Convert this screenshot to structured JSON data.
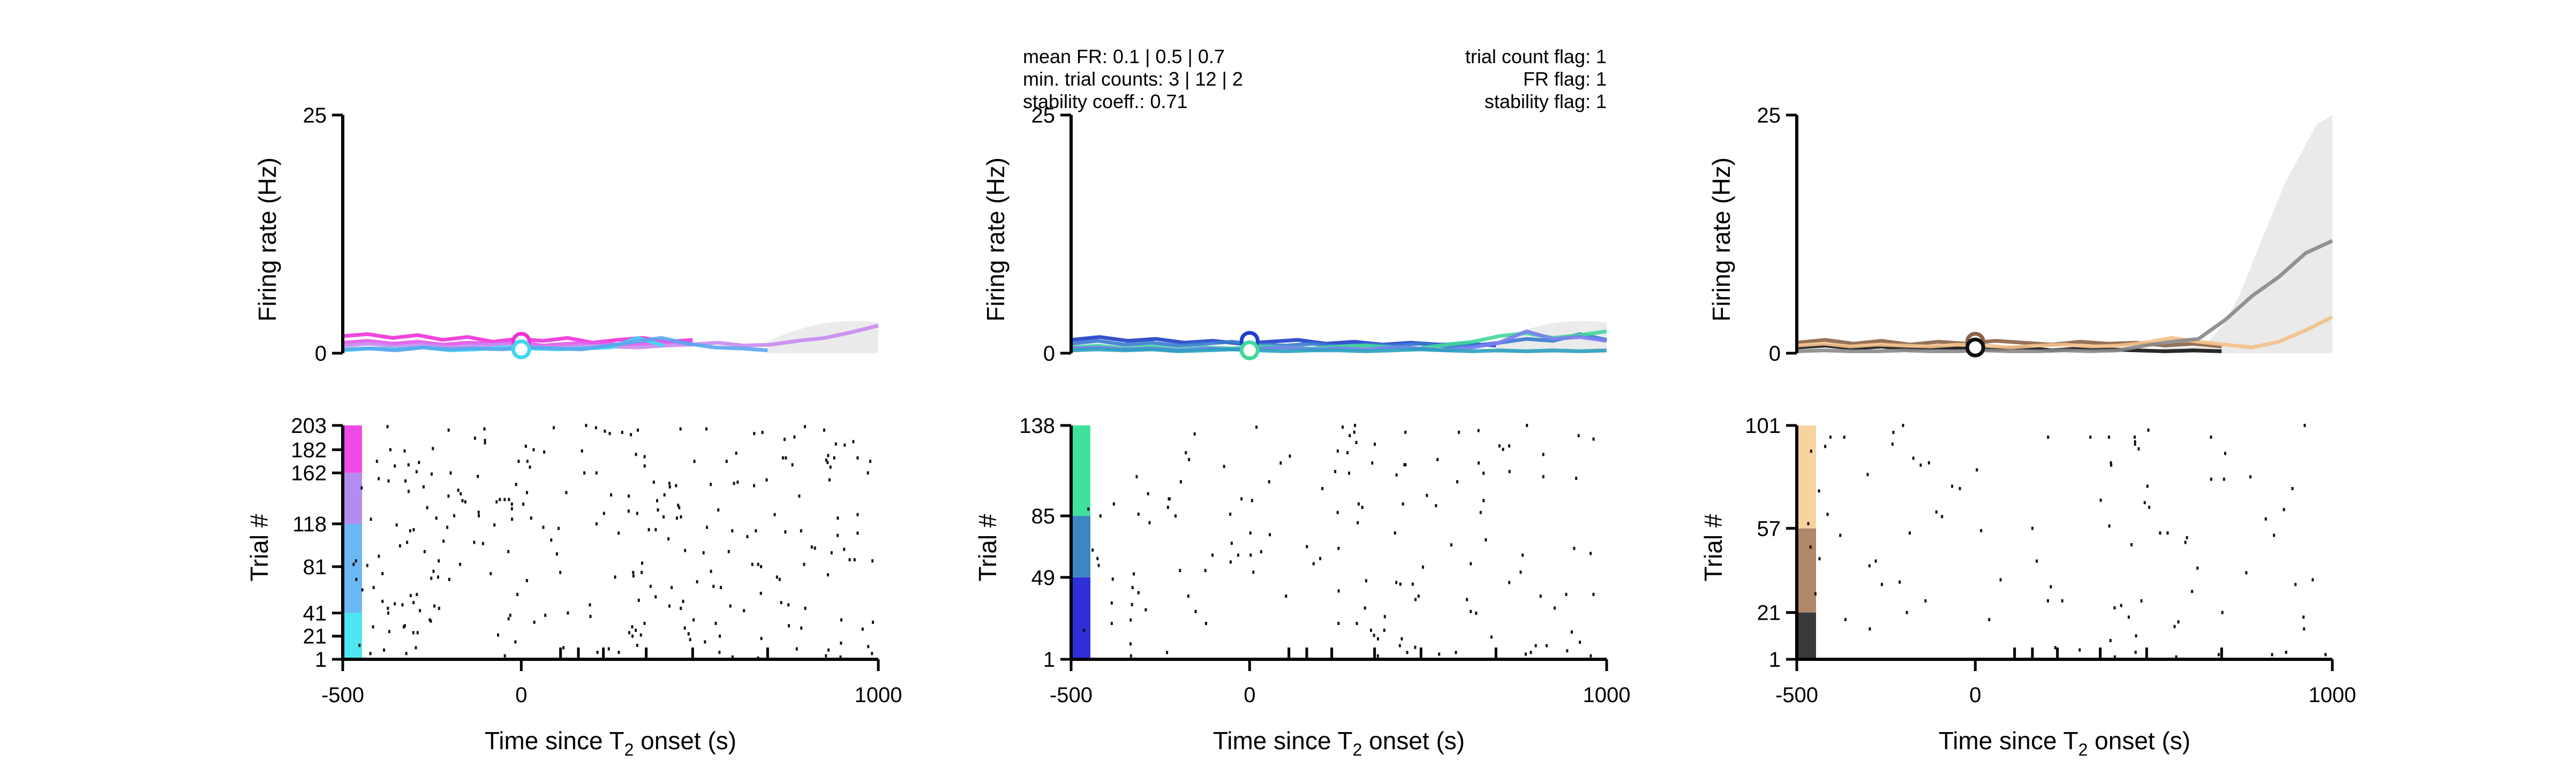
{
  "colors": {
    "axis": "#000000",
    "spike": "#111111",
    "band": "#d8d8d8"
  },
  "chart_data": [
    {
      "type": "line",
      "panel": "left",
      "ylabel_top": "Firing rate (Hz)",
      "ylabel_bottom": "Trial #",
      "xlabel": "Time since T",
      "xlabel_sub": "2",
      "xlabel_tail": " onset (s)",
      "xlim": [
        -500,
        1000
      ],
      "ylim_rate": [
        0,
        25
      ],
      "rate_ticks": [
        "0",
        "25"
      ],
      "x_ticks": [
        "-500",
        "0",
        "1000"
      ],
      "x_tick_values": [
        -500,
        0,
        1000
      ],
      "x_minor_ticks": [
        110,
        160,
        230,
        350,
        480,
        690
      ],
      "trial_ticks": [
        1,
        21,
        41,
        81,
        118,
        162,
        182,
        203
      ],
      "trial_max": 203,
      "trial_groups": [
        {
          "from": 1,
          "to": 41,
          "color": "#4ee6f2"
        },
        {
          "from": 41,
          "to": 118,
          "color": "#6cb8f5"
        },
        {
          "from": 118,
          "to": 162,
          "color": "#b28cf0"
        },
        {
          "from": 162,
          "to": 203,
          "color": "#f04ae6"
        }
      ],
      "series": [
        {
          "color": "#f032d8",
          "end": 480,
          "values": [
            1.8,
            2.0,
            1.6,
            1.9,
            1.4,
            1.7,
            1.2,
            1.5,
            1.3,
            1.6,
            1.1,
            1.4,
            1.6,
            1.2,
            1.4
          ]
        },
        {
          "color": "#e05ae8",
          "end": 480,
          "values": [
            1.1,
            1.3,
            1.0,
            1.2,
            0.9,
            1.1,
            1.0,
            1.2,
            0.8,
            1.0,
            1.1,
            0.9,
            1.0,
            1.2,
            1.0
          ]
        },
        {
          "color": "#c98af0",
          "end": 1000,
          "values": [
            0.8,
            1.0,
            0.7,
            0.9,
            0.6,
            0.8,
            0.9,
            0.7,
            0.6,
            0.8,
            0.7,
            0.6,
            0.8,
            0.9,
            1.1,
            0.8,
            0.9,
            1.3,
            1.6,
            2.2,
            2.9
          ]
        },
        {
          "color": "#3fd8f0",
          "end": 400,
          "values": [
            0.3,
            0.5,
            0.4,
            0.6,
            0.3,
            0.4,
            0.6,
            0.5,
            0.4,
            0.5,
            0.6,
            1.6,
            0.8
          ]
        },
        {
          "color": "#5aa6ee",
          "end": 690,
          "values": [
            0.4,
            0.5,
            0.3,
            0.6,
            0.4,
            0.5,
            0.4,
            0.6,
            0.5,
            0.4,
            0.8,
            1.2,
            1.6,
            1.0,
            0.6,
            0.5,
            0.3
          ]
        }
      ],
      "markers": [
        {
          "x": 0,
          "y": 1.2,
          "color": "#f032d8"
        },
        {
          "x": 0,
          "y": 0.4,
          "color": "#3fd8f0"
        }
      ],
      "band_from": 690,
      "raster_density": 1.0
    },
    {
      "type": "line",
      "panel": "middle",
      "ylabel_top": "Firing rate (Hz)",
      "ylabel_bottom": "Trial #",
      "xlabel": "Time since T",
      "xlabel_sub": "2",
      "xlabel_tail": " onset (s)",
      "xlim": [
        -500,
        1000
      ],
      "ylim_rate": [
        0,
        25
      ],
      "rate_ticks": [
        "0",
        "25"
      ],
      "x_ticks": [
        "-500",
        "0",
        "1000"
      ],
      "x_tick_values": [
        -500,
        0,
        1000
      ],
      "x_minor_ticks": [
        110,
        160,
        230,
        350,
        480,
        690
      ],
      "trial_ticks": [
        1,
        49,
        85,
        138
      ],
      "trial_max": 138,
      "trial_groups": [
        {
          "from": 1,
          "to": 49,
          "color": "#2d2fd8"
        },
        {
          "from": 49,
          "to": 85,
          "color": "#3c86c4"
        },
        {
          "from": 85,
          "to": 138,
          "color": "#3fe29c"
        }
      ],
      "info_left": [
        "mean FR: 0.1 | 0.5 | 0.7",
        "min. trial counts: 3 | 12 | 2",
        "stability coeff.: 0.71"
      ],
      "info_right": [
        "trial count flag: 1",
        "FR flag: 1",
        "stability flag: 1"
      ],
      "series": [
        {
          "color": "#1f3fc8",
          "end": 690,
          "values": [
            1.4,
            1.7,
            1.3,
            1.5,
            1.1,
            1.3,
            1.0,
            1.2,
            1.4,
            1.0,
            1.2,
            0.9,
            1.1,
            0.9,
            1.0,
            0.8
          ]
        },
        {
          "color": "#3a7ad0",
          "end": 1000,
          "values": [
            1.0,
            1.3,
            0.9,
            1.1,
            0.8,
            1.0,
            1.2,
            0.9,
            0.8,
            1.0,
            0.7,
            0.9,
            0.8,
            1.0,
            0.7,
            0.8,
            1.1,
            1.5,
            1.3,
            2.0,
            1.4
          ]
        },
        {
          "color": "#42d89a",
          "end": 1000,
          "values": [
            0.6,
            0.8,
            0.5,
            0.7,
            0.4,
            0.6,
            0.5,
            0.7,
            0.6,
            0.5,
            0.7,
            0.8,
            0.6,
            0.5,
            0.9,
            1.2,
            1.8,
            2.1,
            1.6,
            1.9,
            2.3
          ]
        },
        {
          "color": "#7a7ef0",
          "end": 1000,
          "values": [
            0.5,
            0.6,
            0.4,
            0.5,
            0.3,
            0.5,
            0.4,
            0.5,
            0.6,
            0.4,
            0.5,
            0.4,
            0.6,
            0.5,
            0.3,
            0.6,
            1.1,
            2.3,
            1.5,
            1.7,
            1.3
          ]
        },
        {
          "color": "#2aa0c0",
          "end": 1000,
          "values": [
            0.3,
            0.4,
            0.3,
            0.4,
            0.2,
            0.3,
            0.4,
            0.3,
            0.2,
            0.3,
            0.3,
            0.2,
            0.3,
            0.4,
            0.3,
            0.2,
            0.3,
            0.2,
            0.3,
            0.2,
            0.3
          ]
        }
      ],
      "markers": [
        {
          "x": 0,
          "y": 1.3,
          "color": "#1f3fc8"
        },
        {
          "x": 0,
          "y": 0.3,
          "color": "#42d89a"
        }
      ],
      "band_from": 690,
      "raster_density": 0.8
    },
    {
      "type": "line",
      "panel": "right",
      "ylabel_top": "Firing rate (Hz)",
      "ylabel_bottom": "Trial #",
      "xlabel": "Time since T",
      "xlabel_sub": "2",
      "xlabel_tail": " onset (s)",
      "xlim": [
        -500,
        1000
      ],
      "ylim_rate": [
        0,
        25
      ],
      "rate_ticks": [
        "0",
        "25"
      ],
      "x_ticks": [
        "-500",
        "0",
        "1000"
      ],
      "x_tick_values": [
        -500,
        0,
        1000
      ],
      "x_minor_ticks": [
        110,
        160,
        230,
        350,
        480,
        690
      ],
      "trial_ticks": [
        1,
        21,
        57,
        101
      ],
      "trial_max": 101,
      "trial_groups": [
        {
          "from": 1,
          "to": 21,
          "color": "#3a3a3a"
        },
        {
          "from": 21,
          "to": 57,
          "color": "#b08868"
        },
        {
          "from": 57,
          "to": 101,
          "color": "#f8d3a0"
        }
      ],
      "series": [
        {
          "color": "#111111",
          "end": 690,
          "values": [
            0.6,
            0.8,
            0.5,
            0.7,
            0.4,
            0.6,
            0.5,
            0.4,
            0.6,
            0.3,
            0.5,
            0.4,
            0.3,
            0.2,
            0.3,
            0.2
          ]
        },
        {
          "color": "#8a6244",
          "end": 690,
          "values": [
            1.1,
            1.4,
            1.0,
            1.3,
            0.9,
            1.2,
            1.0,
            1.3,
            1.1,
            0.9,
            1.2,
            1.0,
            1.1,
            0.8,
            1.0,
            0.7
          ]
        },
        {
          "color": "#f3c08a",
          "end": 1000,
          "values": [
            0.8,
            1.0,
            0.7,
            0.9,
            0.8,
            0.7,
            0.9,
            0.8,
            0.6,
            0.8,
            0.9,
            0.7,
            0.8,
            1.1,
            1.6,
            1.2,
            0.9,
            0.6,
            1.2,
            2.4,
            3.8
          ]
        },
        {
          "color": "#888888",
          "end": 1000,
          "values": [
            0.2,
            0.3,
            0.2,
            0.2,
            0.3,
            0.2,
            0.2,
            0.3,
            0.2,
            0.2,
            0.3,
            0.2,
            0.3,
            0.8,
            1.2,
            1.5,
            3.5,
            6.0,
            8.0,
            10.5,
            11.8
          ]
        }
      ],
      "markers": [
        {
          "x": 0,
          "y": 1.2,
          "color": "#8a6244"
        },
        {
          "x": 0,
          "y": 0.6,
          "color": "#111111"
        }
      ],
      "band_from": 520,
      "band_high": [
        0.5,
        0.6,
        0.7,
        1.2,
        3.0,
        6.0,
        10.0,
        14.0,
        18.0,
        21.0,
        24.0,
        25.0
      ],
      "raster_density": 0.7
    }
  ]
}
